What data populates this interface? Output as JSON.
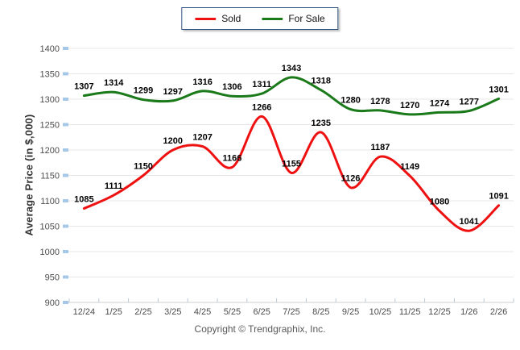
{
  "chart_data": {
    "type": "line",
    "title": "",
    "categories": [
      "12/24",
      "1/25",
      "2/25",
      "3/25",
      "4/25",
      "5/25",
      "6/25",
      "7/25",
      "8/25",
      "9/25",
      "10/25",
      "11/25",
      "12/25",
      "1/26",
      "2/26"
    ],
    "series": [
      {
        "name": "Sold",
        "color": "#ee1111",
        "values": [
          1085,
          1111,
          1150,
          1200,
          1207,
          1166,
          1266,
          1155,
          1235,
          1126,
          1187,
          1149,
          1080,
          1041,
          1091
        ]
      },
      {
        "name": "For Sale",
        "color": "#1a7a1a",
        "values": [
          1307,
          1314,
          1299,
          1297,
          1316,
          1306,
          1311,
          1343,
          1318,
          1280,
          1278,
          1270,
          1274,
          1277,
          1301
        ]
      }
    ],
    "xlabel": "",
    "ylabel": "Average Price (in $,000)",
    "ylim": [
      900,
      1400
    ],
    "ytick_step": 50,
    "grid": true,
    "smooth": true,
    "legend_position": "top-center",
    "data_labels": true
  },
  "colors": {
    "gridline": "#e7e7e7",
    "axis_line": "#cfcfcf",
    "y_tick_stub": "#a6c8e8",
    "x_tick": "#b9c9d9",
    "tick_text": "#4d4d4d",
    "data_label": "#000000",
    "legend_border": "#2f5283"
  },
  "footer": {
    "text": "Copyright © Trendgraphix, Inc."
  }
}
